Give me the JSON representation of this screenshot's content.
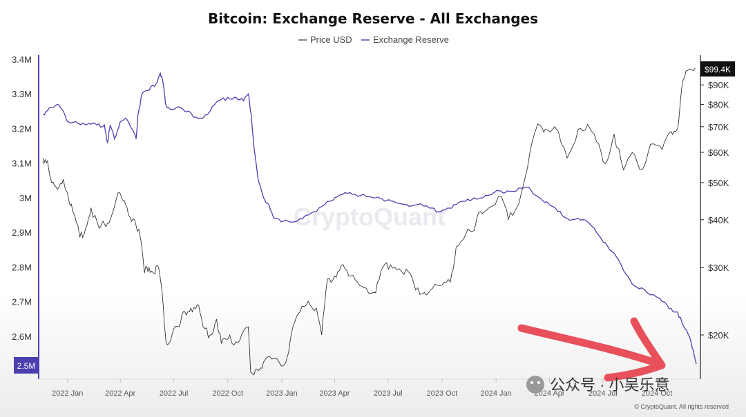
{
  "title": "Bitcoin: Exchange Reserve - All Exchanges",
  "watermark": "CryptoQuant",
  "credit": "© CryptoQuant. All rights reserved",
  "wechat_label": "公众号 · 小吴乐意",
  "colors": {
    "price": "#333333",
    "reserve": "#4b3fb0",
    "arrow": "#e8505b",
    "badge_dark": "#111111"
  },
  "chart_data": {
    "type": "line",
    "legend_position": "top-center",
    "legend": [
      {
        "label": "Price USD",
        "color": "#333333"
      },
      {
        "label": "Exchange Reserve",
        "color": "#4b3fb0"
      }
    ],
    "x_ticks": [
      "2022 Jan",
      "2022 Apr",
      "2022 Jul",
      "2022 Oct",
      "2023 Jan",
      "2023 Apr",
      "2023 Jul",
      "2023 Oct",
      "2024 Jan",
      "2024 Apr",
      "2024 Jul",
      "2024 Oct"
    ],
    "y_left": {
      "ticks": [
        "3.4M",
        "3.3M",
        "3.2M",
        "3.1M",
        "3M",
        "2.9M",
        "2.8M",
        "2.7M",
        "2.6M",
        "2.5M"
      ],
      "min": 2.5,
      "max": 3.4,
      "unit": "M BTC"
    },
    "y_right": {
      "scale": "log",
      "ticks": [
        "$90K",
        "$80K",
        "$70K",
        "$60K",
        "$50K",
        "$40K",
        "$30K",
        "$20K"
      ],
      "tick_values": [
        90,
        80,
        70,
        60,
        50,
        40,
        30,
        20
      ],
      "min": 14,
      "max": 105,
      "unit": "K USD"
    },
    "last_values": {
      "reserve_label": "2.5M",
      "price_label": "$99.4K"
    },
    "series": [
      {
        "name": "Exchange Reserve",
        "axis": "left",
        "points": [
          [
            "2021-11-20",
            3.24
          ],
          [
            "2021-12-01",
            3.26
          ],
          [
            "2021-12-15",
            3.27
          ],
          [
            "2021-12-25",
            3.25
          ],
          [
            "2022-01-01",
            3.22
          ],
          [
            "2022-01-15",
            3.22
          ],
          [
            "2022-02-01",
            3.21
          ],
          [
            "2022-02-20",
            3.21
          ],
          [
            "2022-03-05",
            3.21
          ],
          [
            "2022-03-10",
            3.16
          ],
          [
            "2022-03-15",
            3.21
          ],
          [
            "2022-03-22",
            3.17
          ],
          [
            "2022-04-01",
            3.22
          ],
          [
            "2022-04-10",
            3.23
          ],
          [
            "2022-04-20",
            3.2
          ],
          [
            "2022-04-28",
            3.17
          ],
          [
            "2022-05-01",
            3.24
          ],
          [
            "2022-05-08",
            3.3
          ],
          [
            "2022-05-20",
            3.31
          ],
          [
            "2022-06-01",
            3.33
          ],
          [
            "2022-06-08",
            3.36
          ],
          [
            "2022-06-13",
            3.33
          ],
          [
            "2022-06-17",
            3.27
          ],
          [
            "2022-06-22",
            3.26
          ],
          [
            "2022-07-05",
            3.26
          ],
          [
            "2022-07-20",
            3.25
          ],
          [
            "2022-08-01",
            3.24
          ],
          [
            "2022-08-15",
            3.23
          ],
          [
            "2022-09-01",
            3.25
          ],
          [
            "2022-09-15",
            3.28
          ],
          [
            "2022-10-01",
            3.29
          ],
          [
            "2022-10-15",
            3.29
          ],
          [
            "2022-10-28",
            3.28
          ],
          [
            "2022-11-05",
            3.3
          ],
          [
            "2022-11-10",
            3.24
          ],
          [
            "2022-11-15",
            3.14
          ],
          [
            "2022-11-22",
            3.05
          ],
          [
            "2022-12-01",
            3.0
          ],
          [
            "2022-12-10",
            2.98
          ],
          [
            "2022-12-20",
            2.94
          ],
          [
            "2022-12-31",
            2.93
          ],
          [
            "2023-01-15",
            2.93
          ],
          [
            "2023-02-01",
            2.94
          ],
          [
            "2023-02-15",
            2.95
          ],
          [
            "2023-03-01",
            2.96
          ],
          [
            "2023-03-20",
            2.99
          ],
          [
            "2023-04-01",
            3.0
          ],
          [
            "2023-04-15",
            3.01
          ],
          [
            "2023-05-01",
            3.01
          ],
          [
            "2023-05-20",
            3.01
          ],
          [
            "2023-06-10",
            3.0
          ],
          [
            "2023-06-25",
            2.99
          ],
          [
            "2023-07-10",
            2.99
          ],
          [
            "2023-08-01",
            2.98
          ],
          [
            "2023-08-20",
            2.98
          ],
          [
            "2023-09-10",
            2.97
          ],
          [
            "2023-09-25",
            2.96
          ],
          [
            "2023-10-10",
            2.97
          ],
          [
            "2023-10-25",
            2.98
          ],
          [
            "2023-11-10",
            2.99
          ],
          [
            "2023-11-25",
            3.0
          ],
          [
            "2023-12-10",
            3.0
          ],
          [
            "2023-12-25",
            3.01
          ],
          [
            "2024-01-05",
            3.02
          ],
          [
            "2024-01-20",
            3.02
          ],
          [
            "2024-02-05",
            3.02
          ],
          [
            "2024-02-20",
            3.03
          ],
          [
            "2024-03-01",
            3.02
          ],
          [
            "2024-03-15",
            3.0
          ],
          [
            "2024-04-01",
            2.98
          ],
          [
            "2024-04-15",
            2.96
          ],
          [
            "2024-05-01",
            2.94
          ],
          [
            "2024-05-20",
            2.94
          ],
          [
            "2024-06-05",
            2.93
          ],
          [
            "2024-06-20",
            2.9
          ],
          [
            "2024-07-05",
            2.87
          ],
          [
            "2024-07-20",
            2.84
          ],
          [
            "2024-08-05",
            2.79
          ],
          [
            "2024-08-20",
            2.75
          ],
          [
            "2024-09-05",
            2.74
          ],
          [
            "2024-09-25",
            2.72
          ],
          [
            "2024-10-10",
            2.7
          ],
          [
            "2024-10-25",
            2.68
          ],
          [
            "2024-11-05",
            2.67
          ],
          [
            "2024-11-15",
            2.63
          ],
          [
            "2024-11-25",
            2.6
          ],
          [
            "2024-12-02",
            2.56
          ],
          [
            "2024-12-07",
            2.52
          ]
        ]
      },
      {
        "name": "Price USD",
        "axis": "right",
        "points": [
          [
            "2021-11-20",
            58
          ],
          [
            "2021-11-28",
            57
          ],
          [
            "2021-12-05",
            50
          ],
          [
            "2021-12-15",
            48
          ],
          [
            "2021-12-25",
            51
          ],
          [
            "2022-01-01",
            47
          ],
          [
            "2022-01-10",
            42
          ],
          [
            "2022-01-22",
            36
          ],
          [
            "2022-02-01",
            38
          ],
          [
            "2022-02-10",
            43
          ],
          [
            "2022-02-24",
            38
          ],
          [
            "2022-03-05",
            39
          ],
          [
            "2022-03-15",
            40
          ],
          [
            "2022-03-28",
            47
          ],
          [
            "2022-04-05",
            45
          ],
          [
            "2022-04-15",
            41
          ],
          [
            "2022-04-25",
            40
          ],
          [
            "2022-05-05",
            36
          ],
          [
            "2022-05-12",
            29
          ],
          [
            "2022-05-20",
            30
          ],
          [
            "2022-05-28",
            29
          ],
          [
            "2022-06-05",
            30
          ],
          [
            "2022-06-12",
            25
          ],
          [
            "2022-06-18",
            19
          ],
          [
            "2022-06-28",
            20
          ],
          [
            "2022-07-10",
            21
          ],
          [
            "2022-07-20",
            23
          ],
          [
            "2022-07-30",
            23.5
          ],
          [
            "2022-08-10",
            24
          ],
          [
            "2022-08-20",
            21
          ],
          [
            "2022-09-01",
            20
          ],
          [
            "2022-09-12",
            22
          ],
          [
            "2022-09-20",
            19
          ],
          [
            "2022-10-01",
            19.5
          ],
          [
            "2022-10-15",
            19.2
          ],
          [
            "2022-10-28",
            20.5
          ],
          [
            "2022-11-05",
            21
          ],
          [
            "2022-11-09",
            16
          ],
          [
            "2022-11-20",
            16.3
          ],
          [
            "2022-12-01",
            17
          ],
          [
            "2022-12-15",
            17.3
          ],
          [
            "2022-12-31",
            16.6
          ],
          [
            "2023-01-10",
            17.5
          ],
          [
            "2023-01-20",
            21
          ],
          [
            "2023-02-01",
            23
          ],
          [
            "2023-02-15",
            24.5
          ],
          [
            "2023-03-01",
            23.5
          ],
          [
            "2023-03-10",
            20
          ],
          [
            "2023-03-20",
            28
          ],
          [
            "2023-04-01",
            28.5
          ],
          [
            "2023-04-12",
            30.3
          ],
          [
            "2023-04-25",
            28.5
          ],
          [
            "2023-05-10",
            27.5
          ],
          [
            "2023-05-25",
            26.5
          ],
          [
            "2023-06-10",
            25.8
          ],
          [
            "2023-06-22",
            30
          ],
          [
            "2023-07-05",
            30.5
          ],
          [
            "2023-07-20",
            29.8
          ],
          [
            "2023-08-05",
            29.2
          ],
          [
            "2023-08-17",
            26.2
          ],
          [
            "2023-09-01",
            25.8
          ],
          [
            "2023-09-15",
            26.5
          ],
          [
            "2023-10-01",
            27
          ],
          [
            "2023-10-15",
            27.5
          ],
          [
            "2023-10-25",
            34
          ],
          [
            "2023-11-10",
            36.5
          ],
          [
            "2023-11-25",
            37.5
          ],
          [
            "2023-12-05",
            42
          ],
          [
            "2023-12-20",
            43
          ],
          [
            "2024-01-10",
            46
          ],
          [
            "2024-01-22",
            40
          ],
          [
            "2024-02-05",
            43
          ],
          [
            "2024-02-20",
            52
          ],
          [
            "2024-03-05",
            66
          ],
          [
            "2024-03-14",
            71
          ],
          [
            "2024-03-25",
            69
          ],
          [
            "2024-04-10",
            70
          ],
          [
            "2024-04-20",
            64
          ],
          [
            "2024-05-01",
            58
          ],
          [
            "2024-05-20",
            69
          ],
          [
            "2024-06-05",
            71
          ],
          [
            "2024-06-20",
            64
          ],
          [
            "2024-07-05",
            56
          ],
          [
            "2024-07-20",
            67
          ],
          [
            "2024-08-05",
            54
          ],
          [
            "2024-08-20",
            60
          ],
          [
            "2024-09-06",
            54
          ],
          [
            "2024-09-20",
            63
          ],
          [
            "2024-10-10",
            61
          ],
          [
            "2024-10-25",
            68
          ],
          [
            "2024-11-05",
            69
          ],
          [
            "2024-11-12",
            88
          ],
          [
            "2024-11-22",
            98
          ],
          [
            "2024-12-05",
            99.4
          ]
        ]
      }
    ]
  }
}
